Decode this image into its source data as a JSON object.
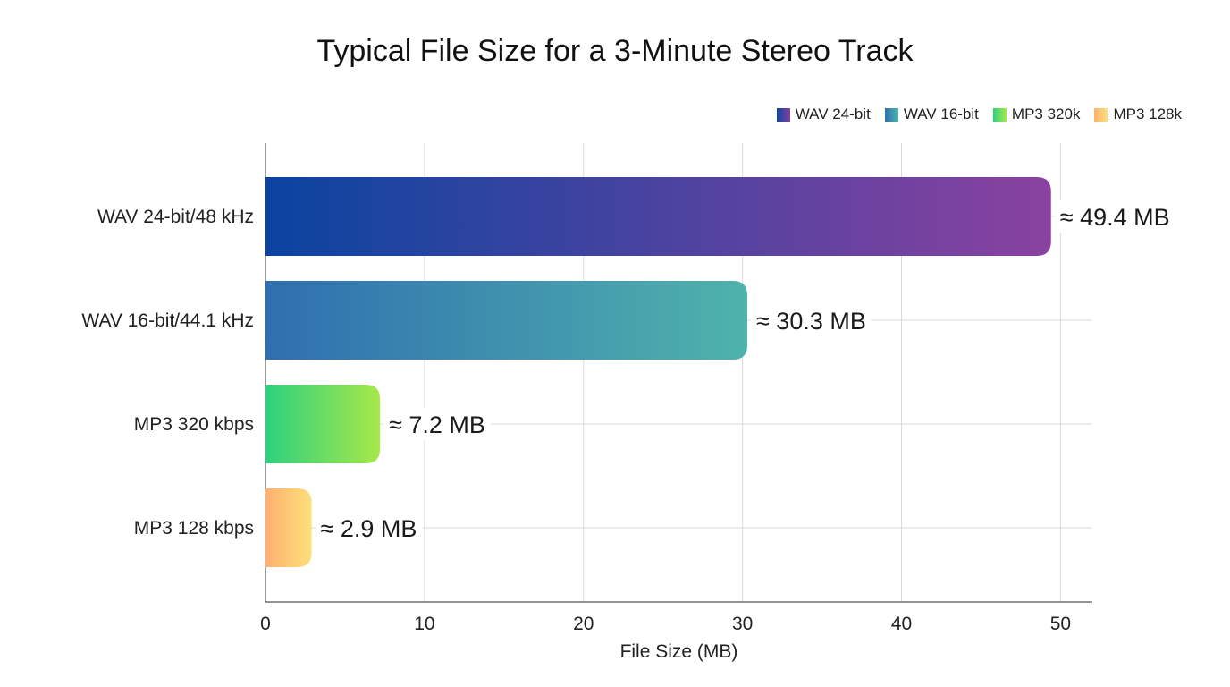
{
  "chart_data": {
    "type": "bar",
    "orientation": "horizontal",
    "title": "Typical File Size for a 3-Minute Stereo Track",
    "xlabel": "File Size (MB)",
    "ylabel": "",
    "xlim": [
      0,
      52
    ],
    "xticks": [
      0,
      10,
      20,
      30,
      40,
      50
    ],
    "grid": true,
    "legend_position": "top-right",
    "categories": [
      "WAV 24-bit/48 kHz",
      "WAV 16-bit/44.1 kHz",
      "MP3 320 kbps",
      "MP3 128 kbps"
    ],
    "values": [
      49.4,
      30.3,
      7.2,
      2.9
    ],
    "data_labels": [
      "≈ 49.4 MB",
      "≈ 30.3 MB",
      "≈ 7.2 MB",
      "≈ 2.9 MB"
    ],
    "legend": [
      {
        "label": "WAV 24-bit",
        "color_start": "#0a44a0",
        "color_end": "#8a42a0"
      },
      {
        "label": "WAV 16-bit",
        "color_start": "#2f6fb0",
        "color_end": "#4fb3ac"
      },
      {
        "label": "MP3 320k",
        "color_start": "#2dd07e",
        "color_end": "#a8e84a"
      },
      {
        "label": "MP3 128k",
        "color_start": "#ffb070",
        "color_end": "#fde07a"
      }
    ]
  }
}
